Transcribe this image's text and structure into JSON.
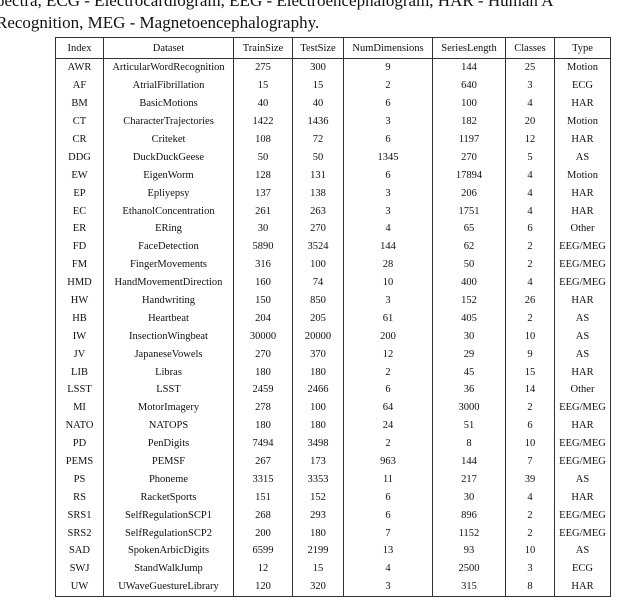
{
  "caption": {
    "line1": "pectra, ECG - Electrocardiogram, EEG - Electroencephalogram, HAR - Human A",
    "line2": "Recognition, MEG - Magnetoencephalography."
  },
  "table": {
    "header": [
      "Index",
      "Dataset",
      "TrainSize",
      "TestSize",
      "NumDimensions",
      "SeriesLength",
      "Classes",
      "Type"
    ],
    "rows": [
      [
        "AWR",
        "ArticularWordRecognition",
        "275",
        "300",
        "9",
        "144",
        "25",
        "Motion"
      ],
      [
        "AF",
        "AtrialFibrillation",
        "15",
        "15",
        "2",
        "640",
        "3",
        "ECG"
      ],
      [
        "BM",
        "BasicMotions",
        "40",
        "40",
        "6",
        "100",
        "4",
        "HAR"
      ],
      [
        "CT",
        "CharacterTrajectories",
        "1422",
        "1436",
        "3",
        "182",
        "20",
        "Motion"
      ],
      [
        "CR",
        "Criteket",
        "108",
        "72",
        "6",
        "1197",
        "12",
        "HAR"
      ],
      [
        "DDG",
        "DuckDuckGeese",
        "50",
        "50",
        "1345",
        "270",
        "5",
        "AS"
      ],
      [
        "EW",
        "EigenWorm",
        "128",
        "131",
        "6",
        "17894",
        "4",
        "Motion"
      ],
      [
        "EP",
        "Epliyepsy",
        "137",
        "138",
        "3",
        "206",
        "4",
        "HAR"
      ],
      [
        "EC",
        "EthanolConcentration",
        "261",
        "263",
        "3",
        "1751",
        "4",
        "HAR"
      ],
      [
        "ER",
        "ERing",
        "30",
        "270",
        "4",
        "65",
        "6",
        "Other"
      ],
      [
        "FD",
        "FaceDetection",
        "5890",
        "3524",
        "144",
        "62",
        "2",
        "EEG/MEG"
      ],
      [
        "FM",
        "FingerMovements",
        "316",
        "100",
        "28",
        "50",
        "2",
        "EEG/MEG"
      ],
      [
        "HMD",
        "HandMovementDirection",
        "160",
        "74",
        "10",
        "400",
        "4",
        "EEG/MEG"
      ],
      [
        "HW",
        "Handwriting",
        "150",
        "850",
        "3",
        "152",
        "26",
        "HAR"
      ],
      [
        "HB",
        "Heartbeat",
        "204",
        "205",
        "61",
        "405",
        "2",
        "AS"
      ],
      [
        "IW",
        "InsectionWingbeat",
        "30000",
        "20000",
        "200",
        "30",
        "10",
        "AS"
      ],
      [
        "JV",
        "JapaneseVowels",
        "270",
        "370",
        "12",
        "29",
        "9",
        "AS"
      ],
      [
        "LIB",
        "Libras",
        "180",
        "180",
        "2",
        "45",
        "15",
        "HAR"
      ],
      [
        "LSST",
        "LSST",
        "2459",
        "2466",
        "6",
        "36",
        "14",
        "Other"
      ],
      [
        "MI",
        "MotorImagery",
        "278",
        "100",
        "64",
        "3000",
        "2",
        "EEG/MEG"
      ],
      [
        "NATO",
        "NATOPS",
        "180",
        "180",
        "24",
        "51",
        "6",
        "HAR"
      ],
      [
        "PD",
        "PenDigits",
        "7494",
        "3498",
        "2",
        "8",
        "10",
        "EEG/MEG"
      ],
      [
        "PEMS",
        "PEMSF",
        "267",
        "173",
        "963",
        "144",
        "7",
        "EEG/MEG"
      ],
      [
        "PS",
        "Phoneme",
        "3315",
        "3353",
        "11",
        "217",
        "39",
        "AS"
      ],
      [
        "RS",
        "RacketSports",
        "151",
        "152",
        "6",
        "30",
        "4",
        "HAR"
      ],
      [
        "SRS1",
        "SelfRegulationSCP1",
        "268",
        "293",
        "6",
        "896",
        "2",
        "EEG/MEG"
      ],
      [
        "SRS2",
        "SelfRegulationSCP2",
        "200",
        "180",
        "7",
        "1152",
        "2",
        "EEG/MEG"
      ],
      [
        "SAD",
        "SpokenArbicDigits",
        "6599",
        "2199",
        "13",
        "93",
        "10",
        "AS"
      ],
      [
        "SWJ",
        "StandWalkJump",
        "12",
        "15",
        "4",
        "2500",
        "3",
        "ECG"
      ],
      [
        "UW",
        "UWaveGuestureLibrary",
        "120",
        "320",
        "3",
        "315",
        "8",
        "HAR"
      ]
    ]
  }
}
